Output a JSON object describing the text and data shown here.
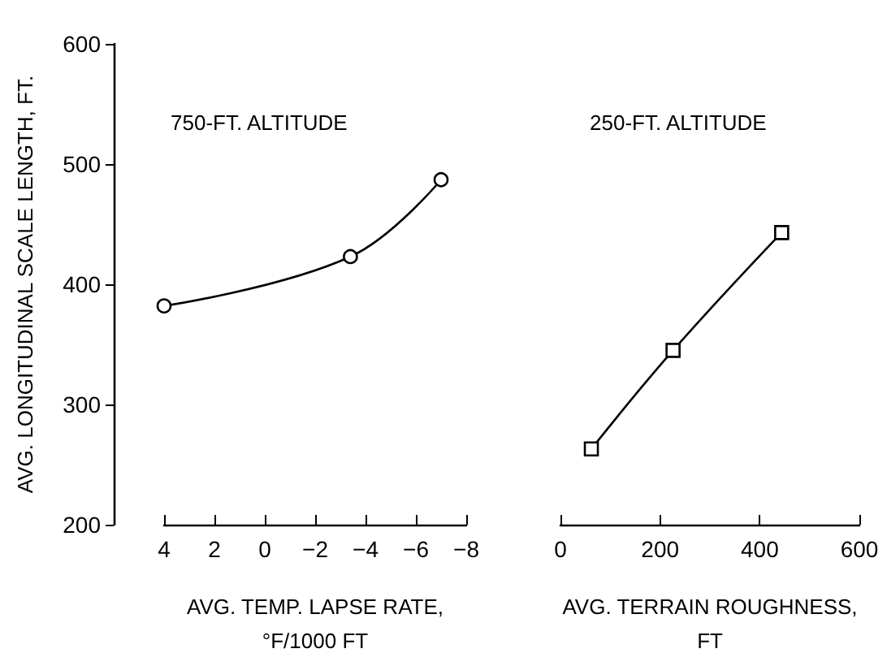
{
  "chart_data": [
    {
      "type": "line",
      "title": "750-FT. ALTITUDE",
      "xlabel": "AVG. TEMP. LAPSE RATE,\n°F/1000 FT",
      "ylabel": "AVG. LONGITUDINAL SCALE LENGTH, FT.",
      "x": [
        4,
        -3.4,
        -7
      ],
      "series": [
        {
          "color": "#000000",
          "values": [
            382,
            423,
            487
          ]
        }
      ],
      "xlim": [
        4,
        -8
      ],
      "xticks": [
        4,
        2,
        0,
        -2,
        -4,
        -6,
        -8
      ],
      "ylim": [
        200,
        600
      ],
      "yticks": [
        200,
        300,
        400,
        500,
        600
      ],
      "marker": "circle"
    },
    {
      "type": "line",
      "title": "250-FT. ALTITUDE",
      "xlabel": "AVG. TERRAIN ROUGHNESS,\nFT",
      "x": [
        62,
        226,
        444
      ],
      "series": [
        {
          "color": "#000000",
          "values": [
            263,
            345,
            443
          ]
        }
      ],
      "xlim": [
        0,
        600
      ],
      "xticks": [
        0,
        200,
        400,
        600
      ],
      "ylim": [
        200,
        600
      ],
      "yticks": [
        200,
        300,
        400,
        500,
        600
      ],
      "marker": "square",
      "tick_labels": "x"
    }
  ]
}
